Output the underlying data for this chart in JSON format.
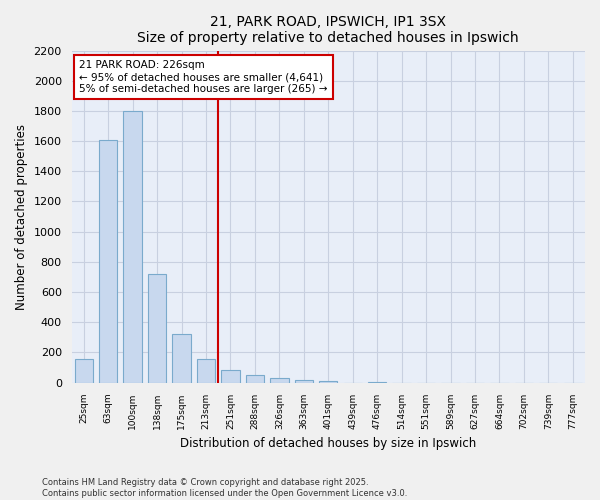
{
  "title": "21, PARK ROAD, IPSWICH, IP1 3SX",
  "subtitle": "Size of property relative to detached houses in Ipswich",
  "xlabel": "Distribution of detached houses by size in Ipswich",
  "ylabel": "Number of detached properties",
  "bar_color": "#c8d8ee",
  "bar_edge_color": "#7aaacc",
  "background_color": "#e8eef8",
  "fig_background_color": "#f0f0f0",
  "categories": [
    "25sqm",
    "63sqm",
    "100sqm",
    "138sqm",
    "175sqm",
    "213sqm",
    "251sqm",
    "288sqm",
    "326sqm",
    "363sqm",
    "401sqm",
    "439sqm",
    "476sqm",
    "514sqm",
    "551sqm",
    "589sqm",
    "627sqm",
    "664sqm",
    "702sqm",
    "739sqm",
    "777sqm"
  ],
  "values": [
    155,
    1610,
    1800,
    720,
    320,
    155,
    85,
    50,
    30,
    20,
    12,
    0,
    5,
    0,
    0,
    0,
    0,
    0,
    0,
    0,
    0
  ],
  "ylim": [
    0,
    2200
  ],
  "yticks": [
    0,
    200,
    400,
    600,
    800,
    1000,
    1200,
    1400,
    1600,
    1800,
    2000,
    2200
  ],
  "property_line_bin": 6,
  "annotation_line1": "21 PARK ROAD: 226sqm",
  "annotation_line2": "← 95% of detached houses are smaller (4,641)",
  "annotation_line3": "5% of semi-detached houses are larger (265) →",
  "annotation_box_color": "#ffffff",
  "annotation_border_color": "#cc0000",
  "red_line_color": "#cc0000",
  "footer_line1": "Contains HM Land Registry data © Crown copyright and database right 2025.",
  "footer_line2": "Contains public sector information licensed under the Open Government Licence v3.0.",
  "grid_color": "#c8d0e0"
}
